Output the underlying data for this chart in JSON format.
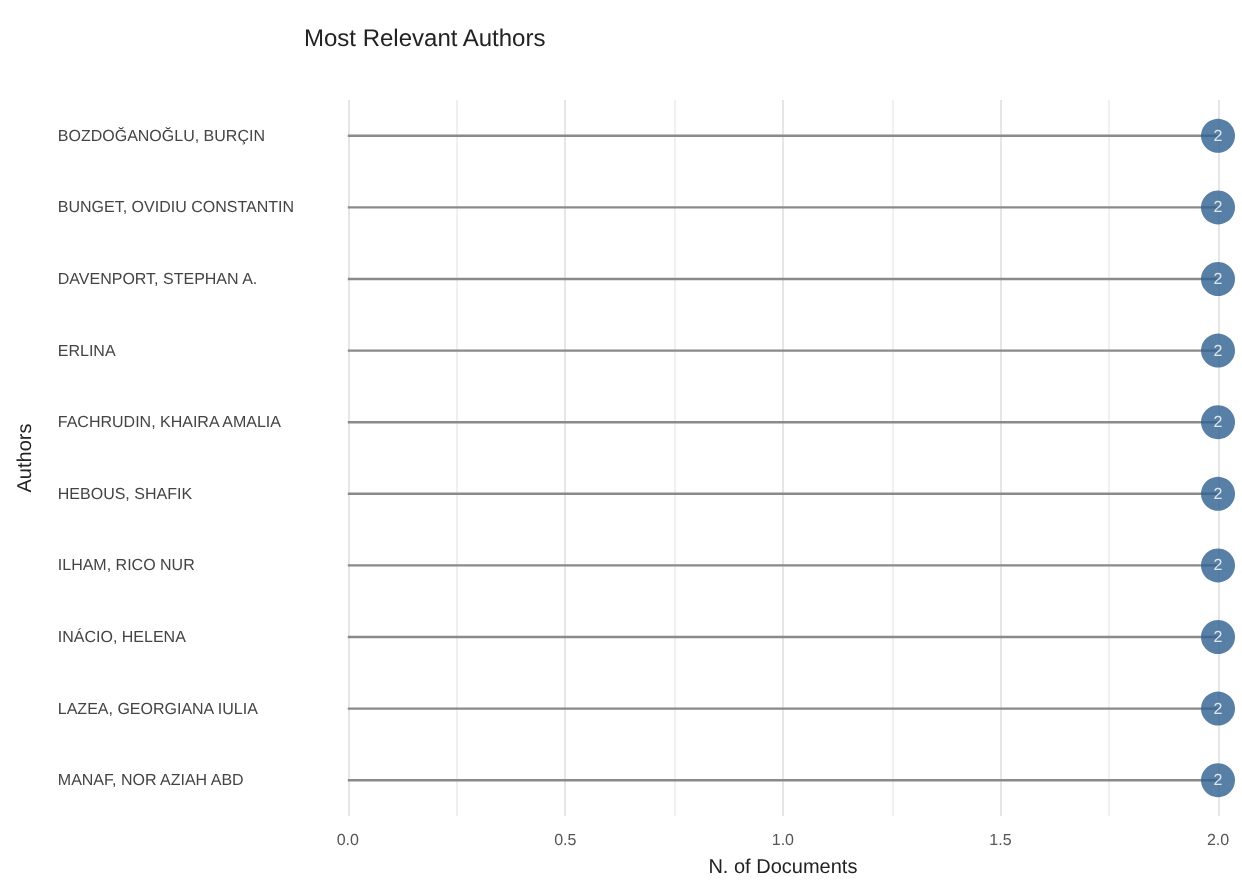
{
  "chart_data": {
    "type": "lollipop",
    "title": "Most Relevant Authors",
    "xlabel": "N. of Documents",
    "ylabel": "Authors",
    "orientation": "horizontal",
    "categories": [
      "BOZDOĞANOĞLU, BURÇIN",
      "BUNGET, OVIDIU CONSTANTIN",
      "DAVENPORT, STEPHAN A.",
      "ERLINA",
      "FACHRUDIN, KHAIRA AMALIA",
      "HEBOUS, SHAFIK",
      "ILHAM, RICO NUR",
      "INÁCIO, HELENA",
      "LAZEA, GEORGIANA IULIA",
      "MANAF, NOR AZIAH ABD"
    ],
    "values": [
      2,
      2,
      2,
      2,
      2,
      2,
      2,
      2,
      2,
      2
    ],
    "color": "#2e5f8f",
    "data_labels": true,
    "xlim": [
      0,
      2
    ],
    "xticks": [
      {
        "value": 0,
        "label": "0.0"
      },
      0.5,
      {
        "value": 1,
        "label": "1.0"
      },
      1.5,
      {
        "value": 2,
        "label": "2.0"
      }
    ],
    "grid": "x"
  }
}
